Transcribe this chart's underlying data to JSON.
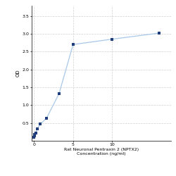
{
  "x": [
    0,
    0.05,
    0.1,
    0.2,
    0.4,
    0.8,
    1.6,
    3.2,
    5,
    10,
    16
  ],
  "y": [
    0.107,
    0.148,
    0.169,
    0.21,
    0.33,
    0.465,
    0.635,
    1.32,
    2.7,
    2.85,
    3.02
  ],
  "xlabel_line1": "Rat Neuronal Pentraxin 2 (NPTX2)",
  "xlabel_line2": "Concentration (ng/ml)",
  "ylabel": "OD",
  "xlim": [
    -0.3,
    17.5
  ],
  "ylim": [
    0,
    3.8
  ],
  "yticks": [
    0.5,
    1.0,
    1.5,
    2.0,
    2.5,
    3.0,
    3.5
  ],
  "xticks": [
    0,
    5,
    10
  ],
  "xtick_labels": [
    "0",
    "5",
    "10"
  ],
  "line_color": "#a8c8e8",
  "marker_color": "#1f3d7a",
  "marker_size": 3.0,
  "line_width": 0.9,
  "grid_color": "#d0d0d0",
  "bg_color": "#ffffff",
  "axis_fontsize": 4.5,
  "tick_fontsize": 4.5,
  "ylabel_fontsize": 5.0
}
